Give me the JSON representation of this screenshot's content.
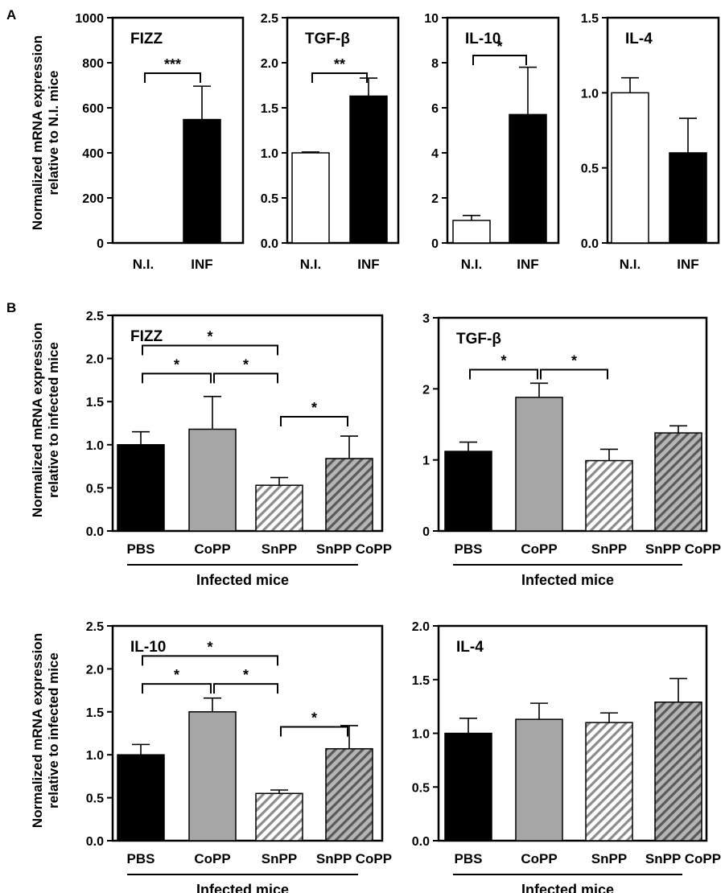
{
  "panel_labels": [
    "A",
    "B"
  ],
  "y_label_A": [
    "Normalized mRNA expression",
    "relative to N.I. mice"
  ],
  "y_label_B": [
    "Normalized mRNA expression",
    "relative to infected mice"
  ],
  "group_label": "Infected mice",
  "colors": {
    "black": "#000000",
    "gray": "#a6a6a6",
    "white": "#ffffff",
    "hatch_white": "#ffffff",
    "hatch_gray": "#8c8c8c"
  },
  "chart_data": [
    {
      "id": "A1",
      "type": "bar",
      "title": "FIZZ",
      "categories": [
        "N.I.",
        "INF"
      ],
      "values": [
        0,
        548
      ],
      "errors": [
        0,
        148
      ],
      "fills": [
        "white",
        "black"
      ],
      "ylim": [
        0,
        1000
      ],
      "yticks": [
        "0",
        "200",
        "400",
        "600",
        "800",
        "1000"
      ],
      "significance": [
        {
          "from": 0,
          "to": 1,
          "label": "***"
        }
      ]
    },
    {
      "id": "A2",
      "type": "bar",
      "title": "TGF-β",
      "categories": [
        "N.I.",
        "INF"
      ],
      "values": [
        1.0,
        1.63
      ],
      "errors": [
        0.01,
        0.2
      ],
      "fills": [
        "white",
        "black"
      ],
      "ylim": [
        0,
        2.5
      ],
      "yticks": [
        "0.0",
        "0.5",
        "1.0",
        "1.5",
        "2.0",
        "2.5"
      ],
      "significance": [
        {
          "from": 0,
          "to": 1,
          "label": "**"
        }
      ]
    },
    {
      "id": "A3",
      "type": "bar",
      "title": "IL-10",
      "categories": [
        "N.I.",
        "INF"
      ],
      "values": [
        1.0,
        5.7
      ],
      "errors": [
        0.22,
        2.1
      ],
      "fills": [
        "white",
        "black"
      ],
      "ylim": [
        0,
        10
      ],
      "yticks": [
        "0",
        "2",
        "4",
        "6",
        "8",
        "10"
      ],
      "significance": [
        {
          "from": 0,
          "to": 1,
          "label": "*"
        }
      ]
    },
    {
      "id": "A4",
      "type": "bar",
      "title": "IL-4",
      "categories": [
        "N.I.",
        "INF"
      ],
      "values": [
        1.0,
        0.6
      ],
      "errors": [
        0.1,
        0.23
      ],
      "fills": [
        "white",
        "black"
      ],
      "ylim": [
        0,
        1.5
      ],
      "yticks": [
        "0.0",
        "0.5",
        "1.0",
        "1.5"
      ],
      "significance": []
    },
    {
      "id": "B1",
      "type": "bar",
      "title": "FIZZ",
      "categories": [
        "PBS",
        "CoPP",
        "SnPP",
        "SnPP CoPP"
      ],
      "values": [
        1.0,
        1.18,
        0.53,
        0.84
      ],
      "errors": [
        0.15,
        0.38,
        0.09,
        0.26
      ],
      "fills": [
        "black",
        "gray",
        "hatch_white",
        "hatch_gray"
      ],
      "ylim": [
        0,
        2.5
      ],
      "yticks": [
        "0.0",
        "0.5",
        "1.0",
        "1.5",
        "2.0",
        "2.5"
      ],
      "significance": [
        {
          "from": 0,
          "to": 1,
          "label": "*"
        },
        {
          "from": 1,
          "to": 2,
          "label": "*"
        },
        {
          "from": 0,
          "to": 2,
          "label": "*"
        },
        {
          "from": 2,
          "to": 3,
          "label": "*"
        }
      ]
    },
    {
      "id": "B2",
      "type": "bar",
      "title": "TGF-β",
      "categories": [
        "PBS",
        "CoPP",
        "SnPP",
        "SnPP CoPP"
      ],
      "values": [
        1.12,
        1.88,
        0.99,
        1.38
      ],
      "errors": [
        0.13,
        0.2,
        0.16,
        0.1
      ],
      "fills": [
        "black",
        "gray",
        "hatch_white",
        "hatch_gray"
      ],
      "ylim": [
        0,
        3
      ],
      "yticks": [
        "0",
        "1",
        "2",
        "3"
      ],
      "significance": [
        {
          "from": 0,
          "to": 1,
          "label": "*"
        },
        {
          "from": 1,
          "to": 2,
          "label": "*"
        }
      ]
    },
    {
      "id": "B3",
      "type": "bar",
      "title": "IL-10",
      "categories": [
        "PBS",
        "CoPP",
        "SnPP",
        "SnPP CoPP"
      ],
      "values": [
        1.0,
        1.5,
        0.55,
        1.07
      ],
      "errors": [
        0.12,
        0.16,
        0.04,
        0.27
      ],
      "fills": [
        "black",
        "gray",
        "hatch_white",
        "hatch_gray"
      ],
      "ylim": [
        0,
        2.5
      ],
      "yticks": [
        "0.0",
        "0.5",
        "1.0",
        "1.5",
        "2.0",
        "2.5"
      ],
      "significance": [
        {
          "from": 0,
          "to": 1,
          "label": "*"
        },
        {
          "from": 1,
          "to": 2,
          "label": "*"
        },
        {
          "from": 0,
          "to": 2,
          "label": "*"
        },
        {
          "from": 2,
          "to": 3,
          "label": "*"
        }
      ]
    },
    {
      "id": "B4",
      "type": "bar",
      "title": "IL-4",
      "categories": [
        "PBS",
        "CoPP",
        "SnPP",
        "SnPP CoPP"
      ],
      "values": [
        1.0,
        1.13,
        1.1,
        1.29
      ],
      "errors": [
        0.14,
        0.15,
        0.09,
        0.22
      ],
      "fills": [
        "black",
        "gray",
        "hatch_white",
        "hatch_gray"
      ],
      "ylim": [
        0,
        2.0
      ],
      "yticks": [
        "0.0",
        "0.5",
        "1.0",
        "1.5",
        "2.0"
      ],
      "significance": []
    }
  ]
}
